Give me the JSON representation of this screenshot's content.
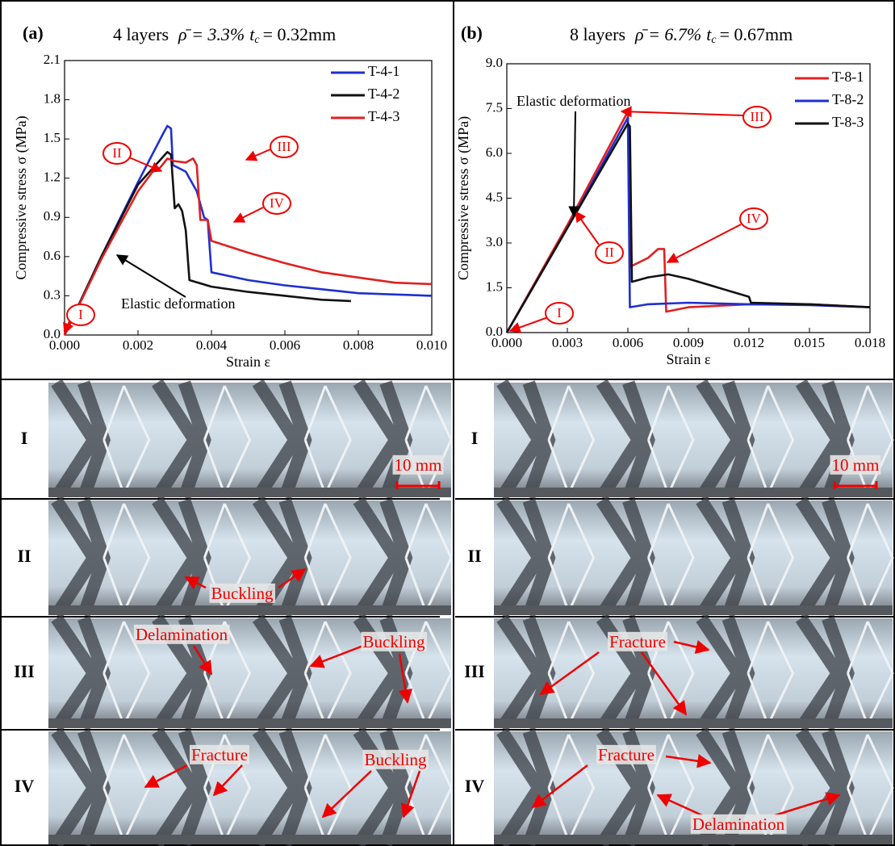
{
  "chart_data": [
    {
      "type": "line",
      "panel_label": "(a)",
      "title": "4 layers",
      "density": "ρ̄ = 3.3%",
      "thickness_symbol": "t",
      "thickness_subscript": "c",
      "thickness_value": "= 0.32mm",
      "x_label": "Strain ε",
      "y_label": "Compressive stress σ (MPa)",
      "xlim": [
        0,
        0.01
      ],
      "ylim": [
        0,
        2.1
      ],
      "xticks": [
        {
          "value": 0,
          "label": "0.000"
        },
        0.002,
        0.004,
        0.006,
        0.008,
        {
          "value": 0.01,
          "label": "0.010"
        }
      ],
      "yticks": [
        {
          "value": 0,
          "label": "0.0"
        },
        0.3,
        0.6,
        0.9,
        1.2,
        1.5,
        1.8,
        2.1
      ],
      "legend": "upper right",
      "series": [
        {
          "name": "T-4-1",
          "color": "#1f2fd0",
          "x": [
            0,
            0.001,
            0.002,
            0.0027,
            0.0028,
            0.0029,
            0.00295,
            0.0033,
            0.0036,
            0.0038,
            0.0039,
            0.004,
            0.005,
            0.006,
            0.007,
            0.008,
            0.009,
            0.01
          ],
          "values": [
            0,
            0.6,
            1.17,
            1.55,
            1.6,
            1.58,
            1.3,
            1.25,
            1.1,
            0.9,
            0.88,
            0.48,
            0.42,
            0.38,
            0.35,
            0.32,
            0.31,
            0.3
          ]
        },
        {
          "name": "T-4-2",
          "color": "#111111",
          "x": [
            0,
            0.001,
            0.002,
            0.0028,
            0.0029,
            0.003,
            0.0031,
            0.0032,
            0.0033,
            0.0034,
            0.004,
            0.005,
            0.006,
            0.007,
            0.0078
          ],
          "values": [
            0,
            0.6,
            1.15,
            1.4,
            1.38,
            0.97,
            1.0,
            0.95,
            0.8,
            0.42,
            0.37,
            0.33,
            0.3,
            0.27,
            0.26
          ]
        },
        {
          "name": "T-4-3",
          "color": "#e02020",
          "x": [
            0,
            0.001,
            0.002,
            0.0024,
            0.0026,
            0.0028,
            0.003,
            0.0033,
            0.0035,
            0.0036,
            0.0037,
            0.0039,
            0.004,
            0.005,
            0.006,
            0.007,
            0.008,
            0.009,
            0.01
          ],
          "values": [
            0,
            0.58,
            1.1,
            1.25,
            1.28,
            1.35,
            1.33,
            1.32,
            1.35,
            1.3,
            0.88,
            0.88,
            0.72,
            0.63,
            0.55,
            0.48,
            0.44,
            0.4,
            0.39
          ]
        }
      ],
      "annotations": [
        "I",
        "II",
        "III",
        "IV",
        "Elastic deformation"
      ]
    },
    {
      "type": "line",
      "panel_label": "(b)",
      "title": "8 layers",
      "density": "ρ̄ = 6.7%",
      "thickness_symbol": "t",
      "thickness_subscript": "c",
      "thickness_value": "= 0.67mm",
      "x_label": "Strain ε",
      "y_label": "Compressive stress σ (MPa)",
      "xlim": [
        0,
        0.018
      ],
      "ylim": [
        0,
        9
      ],
      "xticks": [
        {
          "value": 0,
          "label": "0.000"
        },
        0.003,
        0.006,
        0.009,
        0.012,
        0.015,
        0.018
      ],
      "yticks": [
        {
          "value": 0,
          "label": "0.0"
        },
        1.5,
        {
          "value": 3,
          "label": "3.0"
        },
        4.5,
        {
          "value": 6,
          "label": "6.0"
        },
        7.5,
        {
          "value": 9,
          "label": "9.0"
        }
      ],
      "legend": "upper right",
      "series": [
        {
          "name": "T-8-1",
          "color": "#e02020",
          "x": [
            0,
            0.003,
            0.006,
            0.0061,
            0.007,
            0.0075,
            0.0078,
            0.0079,
            0.009,
            0.012,
            0.015,
            0.018
          ],
          "values": [
            0,
            3.6,
            7.4,
            2.2,
            2.5,
            2.8,
            2.8,
            0.7,
            0.85,
            0.95,
            0.95,
            0.85
          ]
        },
        {
          "name": "T-8-2",
          "color": "#1f2fd0",
          "x": [
            0,
            0.003,
            0.006,
            0.0061,
            0.007,
            0.009,
            0.012,
            0.015,
            0.018
          ],
          "values": [
            0,
            3.5,
            7.2,
            0.85,
            0.95,
            1.0,
            0.95,
            0.92,
            0.85
          ]
        },
        {
          "name": "T-8-3",
          "color": "#111111",
          "x": [
            0,
            0.003,
            0.006,
            0.0061,
            0.0062,
            0.007,
            0.008,
            0.009,
            0.01,
            0.011,
            0.012,
            0.0121,
            0.015,
            0.018
          ],
          "values": [
            0,
            3.5,
            7.0,
            6.9,
            1.7,
            1.85,
            1.95,
            1.8,
            1.6,
            1.4,
            1.2,
            1.0,
            0.95,
            0.85
          ]
        }
      ],
      "annotations": [
        "I",
        "II",
        "III",
        "IV",
        "Elastic deformation"
      ]
    }
  ],
  "photos": [
    [
      {
        "stage": "I",
        "notes": [
          "10 mm"
        ]
      },
      {
        "stage": "II",
        "notes": [
          "Buckling"
        ]
      },
      {
        "stage": "III",
        "notes": [
          "Delamination",
          "Buckling"
        ]
      },
      {
        "stage": "IV",
        "notes": [
          "Fracture",
          "Buckling"
        ]
      }
    ],
    [
      {
        "stage": "I",
        "notes": [
          "10 mm"
        ]
      },
      {
        "stage": "II"
      },
      {
        "stage": "III",
        "notes": [
          "Fracture"
        ]
      },
      {
        "stage": "IV",
        "notes": [
          "Fracture",
          "Delamination"
        ]
      }
    ]
  ]
}
